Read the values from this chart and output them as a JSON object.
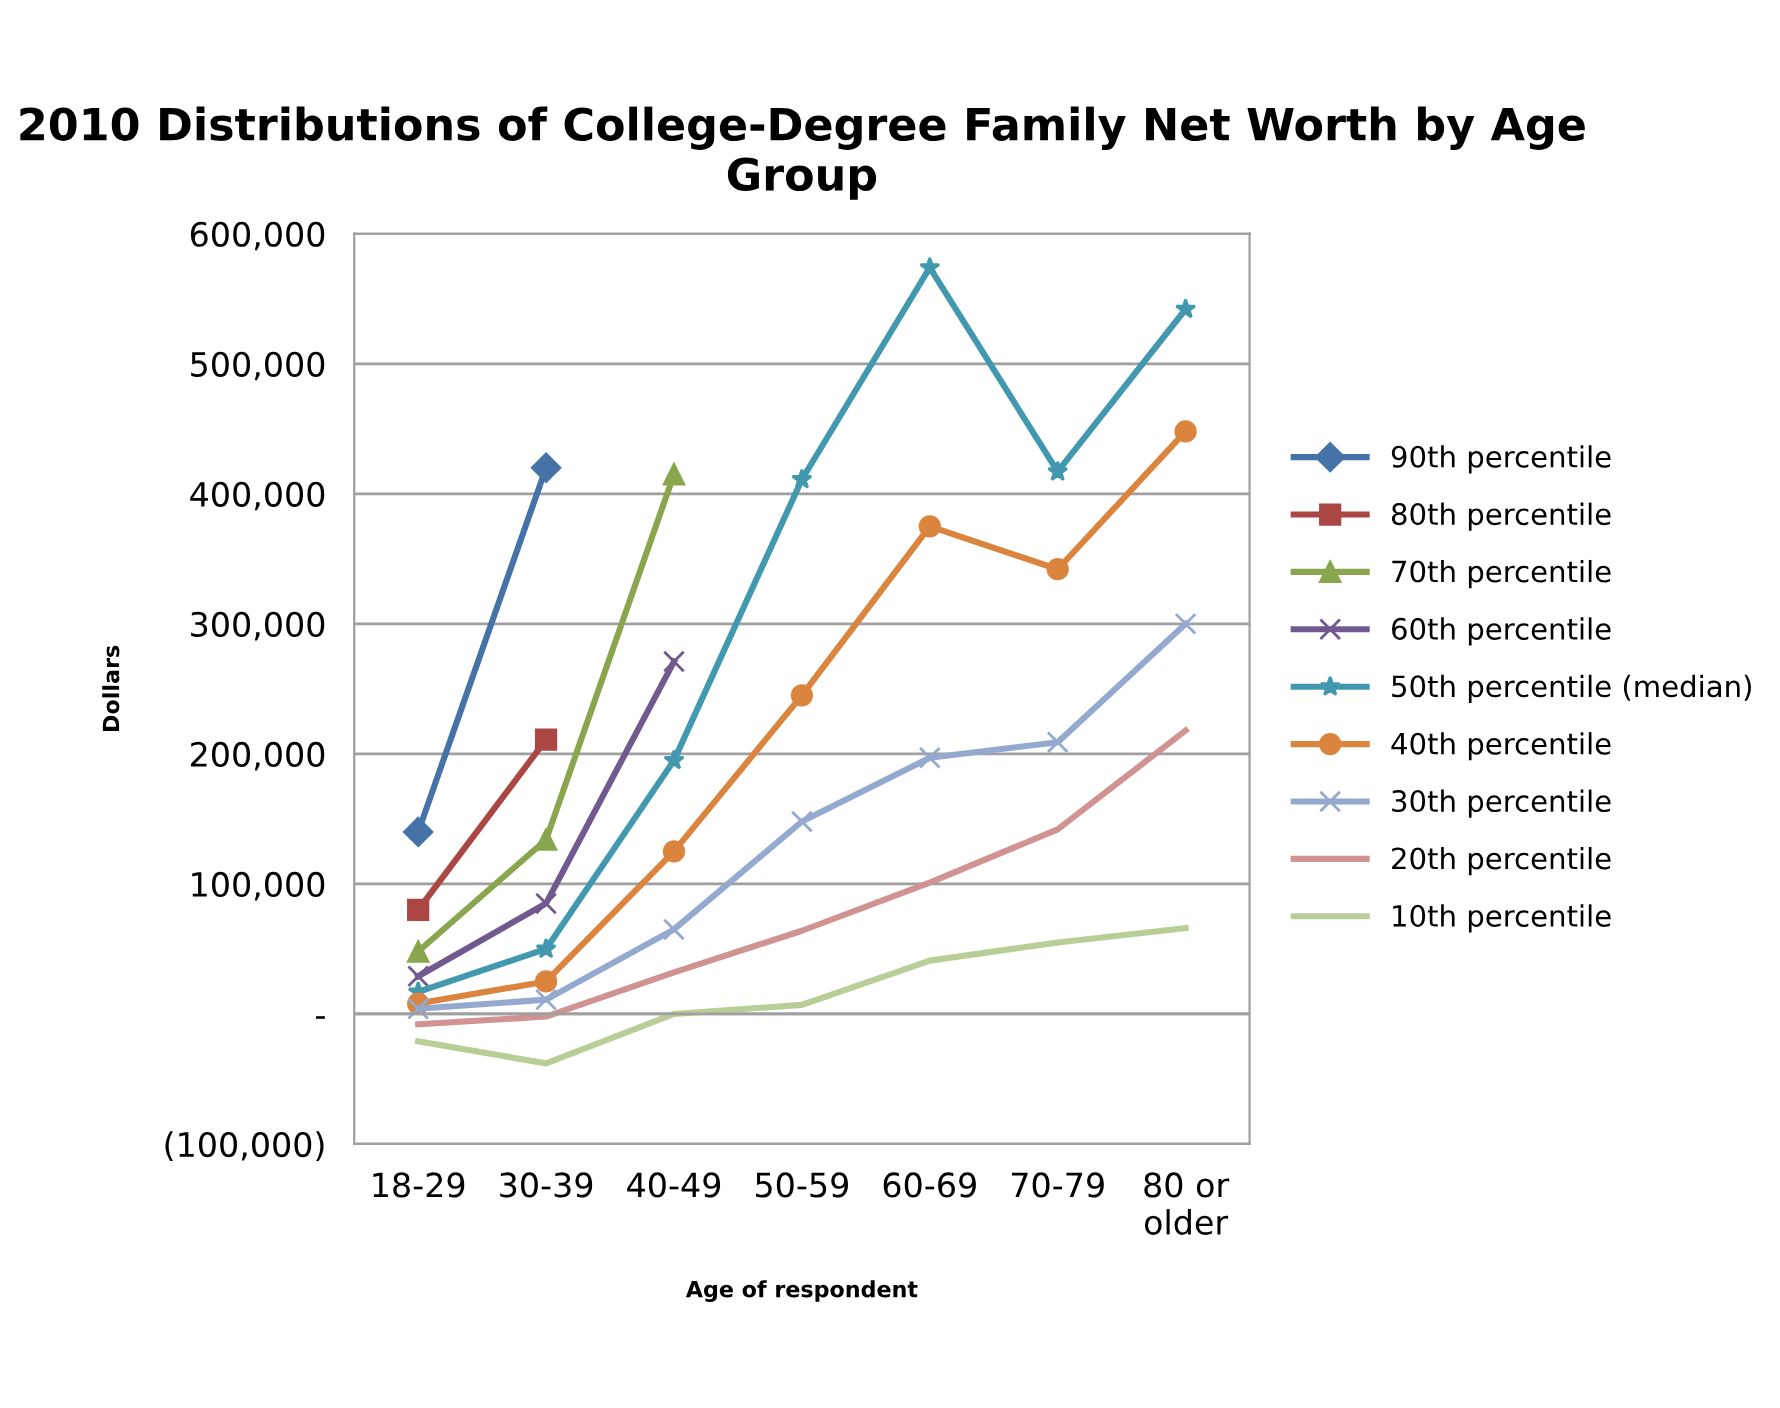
{
  "chart_data": {
    "type": "line",
    "title": "2010 Distributions of College-Degree Family Net Worth by Age Group",
    "xlabel": "Age of respondent",
    "ylabel": "Dollars",
    "categories": [
      "18-29",
      "30-39",
      "40-49",
      "50-59",
      "60-69",
      "70-79",
      "80 or\nolder"
    ],
    "ylim": [
      -100000,
      600000
    ],
    "yticks": [
      {
        "value": -100000,
        "label": "(100,000)"
      },
      {
        "value": 0,
        "label": "-"
      },
      {
        "value": 100000,
        "label": "100,000"
      },
      {
        "value": 200000,
        "label": "200,000"
      },
      {
        "value": 300000,
        "label": "300,000"
      },
      {
        "value": 400000,
        "label": "400,000"
      },
      {
        "value": 500000,
        "label": "500,000"
      },
      {
        "value": 600000,
        "label": "600,000"
      }
    ],
    "grid": "y",
    "legend": "right",
    "series": [
      {
        "name": "90th percentile",
        "color": "#4572a7",
        "marker": "diamond",
        "values": [
          140000,
          420000,
          null,
          null,
          null,
          null,
          null
        ]
      },
      {
        "name": "80th percentile",
        "color": "#aa4643",
        "marker": "square",
        "values": [
          80000,
          211000,
          null,
          null,
          null,
          null,
          null
        ]
      },
      {
        "name": "70th percentile",
        "color": "#89a54e",
        "marker": "triangle",
        "values": [
          48000,
          134000,
          415000,
          null,
          null,
          null,
          null
        ]
      },
      {
        "name": "60th percentile",
        "color": "#71588f",
        "marker": "cross",
        "values": [
          29000,
          85000,
          271000,
          null,
          null,
          null,
          null
        ]
      },
      {
        "name": "50th percentile (median)",
        "color": "#4198af",
        "marker": "star",
        "values": [
          17000,
          50000,
          195000,
          411000,
          574000,
          417000,
          542000
        ]
      },
      {
        "name": "40th percentile",
        "color": "#db843d",
        "marker": "circle",
        "values": [
          8000,
          25000,
          125000,
          245000,
          375000,
          342000,
          448000
        ]
      },
      {
        "name": "30th percentile",
        "color": "#93a9cf",
        "marker": "cross",
        "values": [
          4000,
          11000,
          65000,
          148000,
          197000,
          209000,
          300000
        ]
      },
      {
        "name": "20th percentile",
        "color": "#d19392",
        "marker": "none",
        "values": [
          -8000,
          -2000,
          32000,
          64000,
          101000,
          142000,
          218000
        ]
      },
      {
        "name": "10th percentile",
        "color": "#b9cd96",
        "marker": "none",
        "values": [
          -21000,
          -38000,
          0,
          7000,
          41000,
          55000,
          66000
        ]
      }
    ]
  }
}
